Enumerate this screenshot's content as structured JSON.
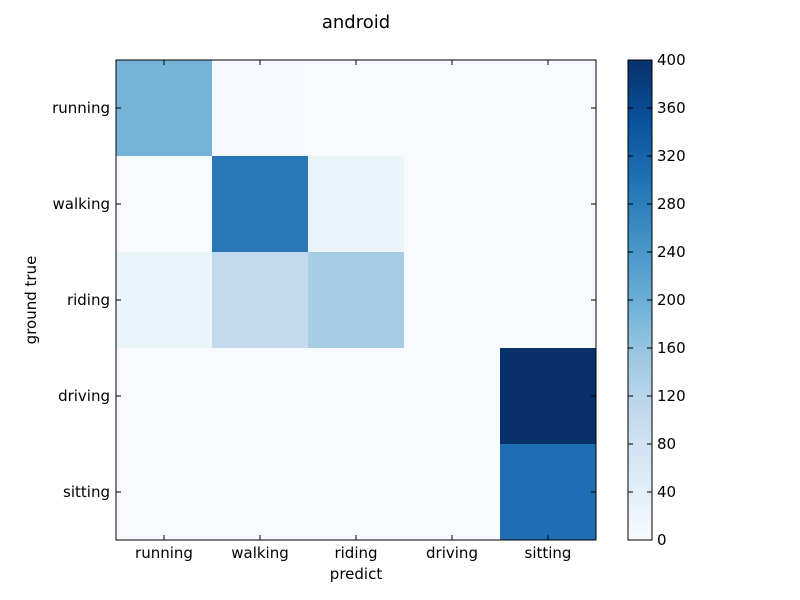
{
  "chart_data": {
    "type": "heatmap",
    "title": "android",
    "xlabel": "predict",
    "ylabel": "ground true",
    "x_categories": [
      "running",
      "walking",
      "riding",
      "driving",
      "sitting"
    ],
    "y_categories": [
      "running",
      "walking",
      "riding",
      "driving",
      "sitting"
    ],
    "values": [
      [
        190,
        3,
        0,
        0,
        0
      ],
      [
        0,
        290,
        22,
        0,
        0
      ],
      [
        22,
        105,
        140,
        0,
        0
      ],
      [
        0,
        0,
        0,
        0,
        400
      ],
      [
        0,
        0,
        0,
        0,
        305
      ]
    ],
    "colorscale": "Blues",
    "color_range": [
      0,
      400
    ],
    "colorbar_ticks": [
      0,
      40,
      80,
      120,
      160,
      200,
      240,
      280,
      320,
      360,
      400
    ],
    "grid": false
  }
}
